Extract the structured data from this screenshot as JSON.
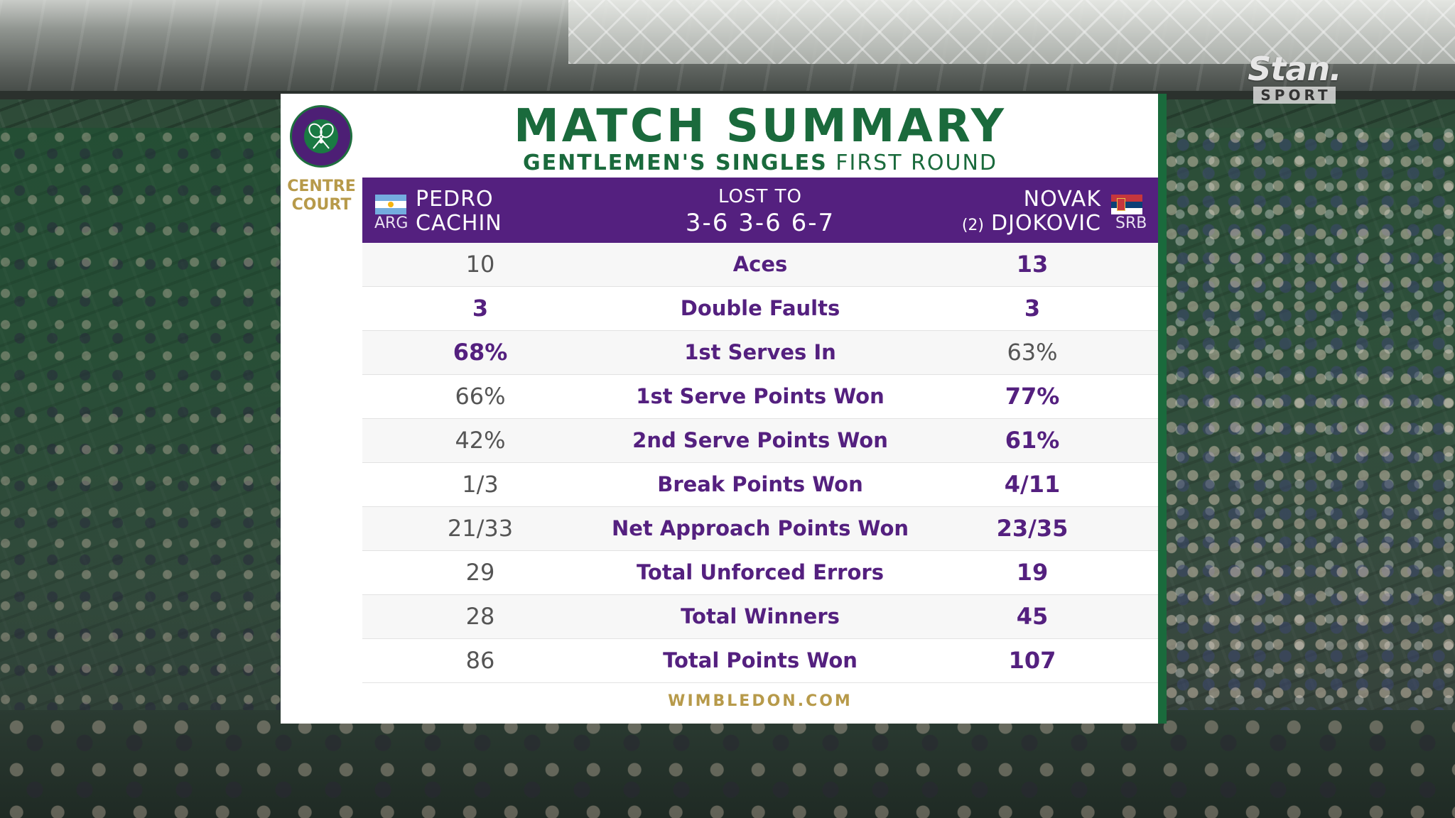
{
  "broadcaster": {
    "name": "Stan.",
    "sub": "SPORT"
  },
  "court": "CENTRE COURT",
  "title": "MATCH SUMMARY",
  "subtitle": {
    "event": "GENTLEMEN'S SINGLES",
    "round": "FIRST ROUND"
  },
  "player1": {
    "first": "PEDRO",
    "last": "CACHIN",
    "country": "ARG",
    "flag": "argentina-flag-icon"
  },
  "player2": {
    "first": "NOVAK",
    "last": "DJOKOVIC",
    "seed": "(2)",
    "country": "SRB",
    "flag": "serbia-flag-icon"
  },
  "result": {
    "label": "LOST TO",
    "score": "3-6 3-6 6-7"
  },
  "stats": [
    {
      "label": "Aces",
      "p1": "10",
      "p2": "13",
      "leader": "p2"
    },
    {
      "label": "Double Faults",
      "p1": "3",
      "p2": "3",
      "leader": "both"
    },
    {
      "label": "1st Serves In",
      "p1": "68%",
      "p2": "63%",
      "leader": "p1"
    },
    {
      "label": "1st Serve Points Won",
      "p1": "66%",
      "p2": "77%",
      "leader": "p2"
    },
    {
      "label": "2nd Serve Points Won",
      "p1": "42%",
      "p2": "61%",
      "leader": "p2"
    },
    {
      "label": "Break Points Won",
      "p1": "1/3",
      "p2": "4/11",
      "leader": "p2"
    },
    {
      "label": "Net Approach Points Won",
      "p1": "21/33",
      "p2": "23/35",
      "leader": "p2"
    },
    {
      "label": "Total Unforced Errors",
      "p1": "29",
      "p2": "19",
      "leader": "p2"
    },
    {
      "label": "Total Winners",
      "p1": "28",
      "p2": "45",
      "leader": "p2"
    },
    {
      "label": "Total Points Won",
      "p1": "86",
      "p2": "107",
      "leader": "p2"
    }
  ],
  "footer": "WIMBLEDON.COM",
  "colors": {
    "purple": "#54207f",
    "green": "#1a6a3c",
    "gold": "#b79a4a"
  }
}
